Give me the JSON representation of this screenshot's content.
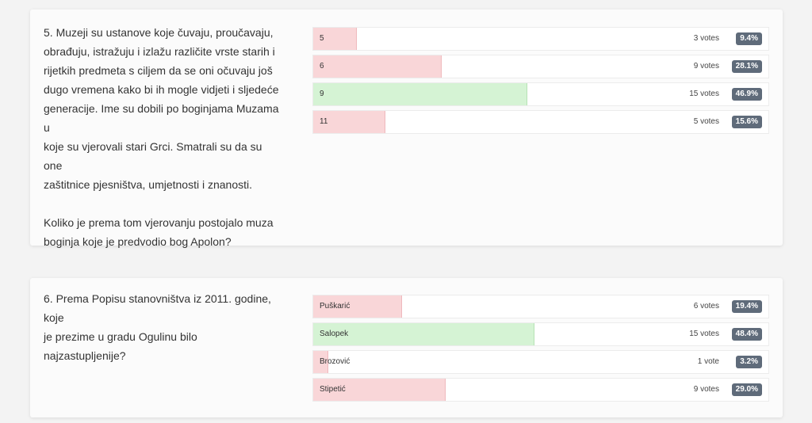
{
  "colors": {
    "wrong_fill": "#f9d6d8",
    "correct_fill": "#d5f3d4",
    "badge": "#5f6b7a"
  },
  "questions": [
    {
      "text": "5. Muzeji su ustanove koje čuvaju, proučavaju,\nobrađuju, istražuju i izlažu različite vrste starih i\nrijetkih predmeta s ciljem da se oni očuvaju još\ndugo vremena kako bi ih mogle vidjeti i sljedeće\ngeneracije. Ime su dobili po boginjama Muzama u\nkoje su vjerovali stari Grci. Smatrali su da su one\nzaštitnice pjesništva, umjetnosti i znanosti.\n\nKoliko je prema tom vjerovanju postojalo muza\nboginja koje je predvodio bog Apolon?",
      "answers": [
        {
          "label": "5",
          "votes": "3 votes",
          "percent": "9.4%",
          "value": 9.4,
          "correct": false
        },
        {
          "label": "6",
          "votes": "9 votes",
          "percent": "28.1%",
          "value": 28.1,
          "correct": false
        },
        {
          "label": "9",
          "votes": "15 votes",
          "percent": "46.9%",
          "value": 46.9,
          "correct": true
        },
        {
          "label": "11",
          "votes": "5 votes",
          "percent": "15.6%",
          "value": 15.6,
          "correct": false
        }
      ]
    },
    {
      "text": "6. Prema Popisu stanovništva iz 2011. godine, koje\nje prezime u gradu Ogulinu bilo najzastupljenije?",
      "answers": [
        {
          "label": "Puškarić",
          "votes": "6 votes",
          "percent": "19.4%",
          "value": 19.4,
          "correct": false
        },
        {
          "label": "Salopek",
          "votes": "15 votes",
          "percent": "48.4%",
          "value": 48.4,
          "correct": true
        },
        {
          "label": "Brozović",
          "votes": "1 vote",
          "percent": "3.2%",
          "value": 3.2,
          "correct": false
        },
        {
          "label": "Stipetić",
          "votes": "9 votes",
          "percent": "29.0%",
          "value": 29.0,
          "correct": false
        }
      ]
    }
  ]
}
